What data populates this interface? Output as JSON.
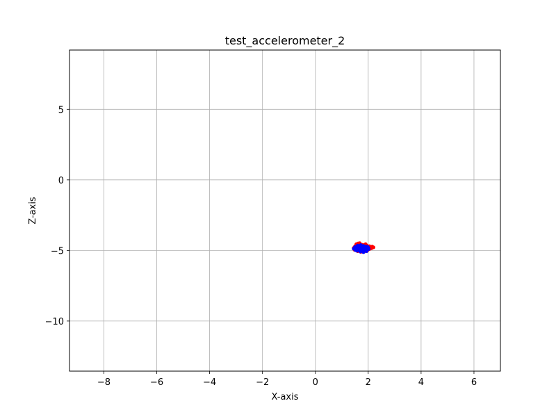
{
  "chart_data": {
    "type": "scatter",
    "title": "test_accelerometer_2",
    "xlabel": "X-axis",
    "ylabel": "Z-axis",
    "xlim": [
      -9.3,
      7.0
    ],
    "ylim": [
      -13.55,
      9.2
    ],
    "xticks": [
      -8,
      -6,
      -4,
      -2,
      0,
      2,
      4,
      6
    ],
    "xtick_labels": [
      "−8",
      "−6",
      "−4",
      "−2",
      "0",
      "2",
      "4",
      "6"
    ],
    "yticks": [
      -10,
      -5,
      0,
      5
    ],
    "ytick_labels": [
      "−10",
      "−5",
      "0",
      "5"
    ],
    "grid": true,
    "series": [
      {
        "color": "#ff0000",
        "points": [
          [
            1.55,
            -4.55
          ],
          [
            1.62,
            -4.5
          ],
          [
            1.7,
            -4.58
          ],
          [
            1.78,
            -4.6
          ],
          [
            1.85,
            -4.62
          ],
          [
            1.95,
            -4.65
          ],
          [
            2.05,
            -4.7
          ],
          [
            2.15,
            -4.72
          ],
          [
            2.2,
            -4.78
          ],
          [
            2.12,
            -4.85
          ],
          [
            1.5,
            -4.7
          ],
          [
            1.45,
            -4.82
          ],
          [
            1.48,
            -4.95
          ],
          [
            1.6,
            -5.05
          ],
          [
            1.72,
            -5.1
          ],
          [
            1.85,
            -5.08
          ],
          [
            1.98,
            -4.98
          ],
          [
            2.05,
            -4.9
          ],
          [
            1.68,
            -4.48
          ],
          [
            1.9,
            -4.55
          ]
        ]
      },
      {
        "color": "#0000ff",
        "points": [
          [
            1.5,
            -4.75
          ],
          [
            1.55,
            -4.85
          ],
          [
            1.6,
            -4.95
          ],
          [
            1.65,
            -4.7
          ],
          [
            1.7,
            -4.8
          ],
          [
            1.75,
            -4.9
          ],
          [
            1.8,
            -5.0
          ],
          [
            1.85,
            -4.75
          ],
          [
            1.9,
            -4.85
          ],
          [
            1.95,
            -4.95
          ],
          [
            2.0,
            -4.8
          ],
          [
            1.6,
            -4.65
          ],
          [
            1.72,
            -4.62
          ],
          [
            1.82,
            -4.68
          ],
          [
            1.92,
            -4.72
          ],
          [
            1.58,
            -5.02
          ],
          [
            1.7,
            -5.08
          ],
          [
            1.82,
            -5.12
          ],
          [
            1.94,
            -5.05
          ],
          [
            2.02,
            -4.9
          ],
          [
            1.45,
            -4.88
          ],
          [
            1.52,
            -4.98
          ],
          [
            1.66,
            -4.88
          ],
          [
            1.78,
            -4.78
          ],
          [
            1.88,
            -4.92
          ],
          [
            1.62,
            -4.78
          ],
          [
            1.74,
            -4.98
          ],
          [
            1.86,
            -5.02
          ],
          [
            1.96,
            -4.86
          ],
          [
            1.68,
            -4.72
          ],
          [
            1.76,
            -4.68
          ],
          [
            1.54,
            -4.92
          ],
          [
            1.64,
            -5.0
          ],
          [
            1.8,
            -4.86
          ],
          [
            1.9,
            -4.78
          ],
          [
            1.98,
            -4.75
          ],
          [
            1.84,
            -4.94
          ],
          [
            1.72,
            -4.9
          ],
          [
            1.6,
            -4.86
          ],
          [
            1.7,
            -5.0
          ]
        ]
      }
    ]
  }
}
